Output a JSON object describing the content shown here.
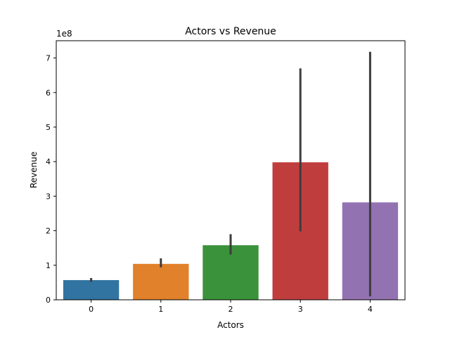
{
  "chart_data": {
    "type": "bar",
    "title": "Actors vs Revenue",
    "xlabel": "Actors",
    "ylabel": "Revenue",
    "y_offset_label": "1e8",
    "y_scale": 100000000,
    "ylim": [
      0,
      750000000
    ],
    "yticks": [
      0,
      100000000,
      200000000,
      300000000,
      400000000,
      500000000,
      600000000,
      700000000
    ],
    "ytick_labels": [
      "0",
      "1",
      "2",
      "3",
      "4",
      "5",
      "6",
      "7"
    ],
    "categories": [
      "0",
      "1",
      "2",
      "3",
      "4"
    ],
    "values": [
      57000000,
      104000000,
      158000000,
      398000000,
      282000000
    ],
    "error_low": [
      52000000,
      94000000,
      131000000,
      198000000,
      10000000
    ],
    "error_high": [
      63000000,
      120000000,
      190000000,
      670000000,
      718000000
    ],
    "colors": [
      "#3274a1",
      "#e1812c",
      "#3a923a",
      "#c03d3e",
      "#9372b2"
    ],
    "error_color": "#3c3c3c",
    "grid": false,
    "legend": "none"
  }
}
